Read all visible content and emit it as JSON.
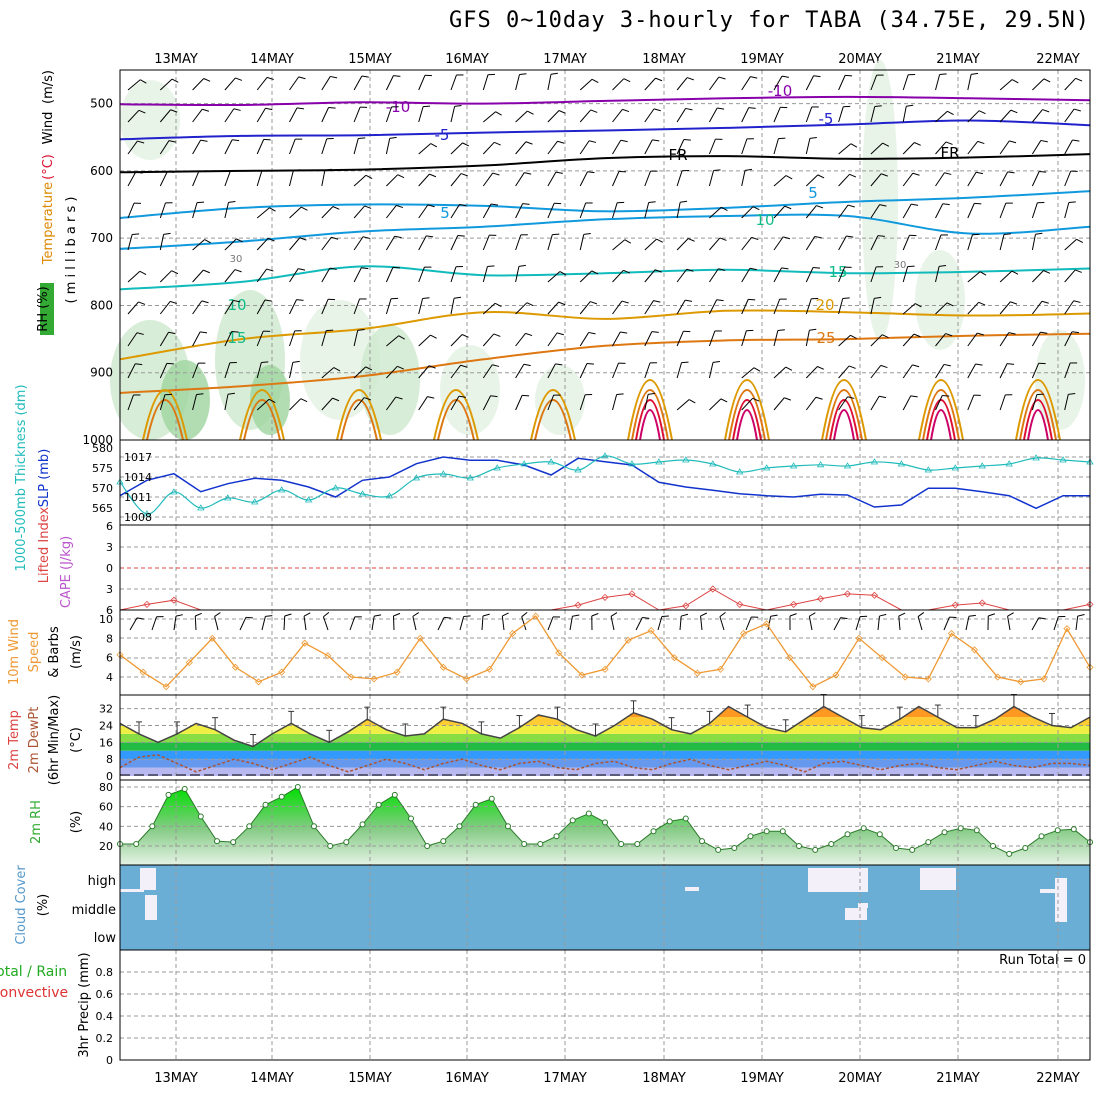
{
  "title": "GFS 0~10day 3-hourly for TABA (34.75E, 29.5N)",
  "date_labels": [
    "13MAY",
    "14MAY",
    "15MAY",
    "16MAY",
    "17MAY",
    "18MAY",
    "19MAY",
    "20MAY",
    "21MAY",
    "22MAY"
  ],
  "colors": {
    "purple": "#8800aa",
    "blue": "#2222cc",
    "black": "#000000",
    "lightblue": "#1199dd",
    "cyan": "#11bbbb",
    "teal": "#11bb88",
    "orange": "#dd9900",
    "darkorange": "#dd7711",
    "red": "#dd1133",
    "slp": "#1133cc",
    "thickness": "#22bbbb",
    "windspd": "#ee9933",
    "cape": "#dd4444",
    "cloud": "#6aaed6",
    "rh2m": "#33aa33"
  },
  "chart_data": [
    {
      "type": "heatmap",
      "panel": "upper-air",
      "ylabel_parts": [
        "RH (%)",
        "Temperature",
        "(°C)",
        "Wind",
        "(m/s)"
      ],
      "ylabel_right": "( m i l l i b a r s )",
      "yticks": [
        500,
        600,
        700,
        800,
        900,
        1000
      ],
      "ylim": [
        450,
        1000
      ],
      "grid": true,
      "temperature_contours": [
        {
          "label": "-10",
          "levels": [
            501,
            502,
            498,
            500,
            496,
            492,
            490,
            492,
            495
          ]
        },
        {
          "label": "-5",
          "levels": [
            553,
            548,
            547,
            543,
            540,
            536,
            531,
            525,
            532
          ]
        },
        {
          "label": "FR",
          "levels": [
            602,
            600,
            598,
            592,
            581,
            578,
            582,
            580,
            575
          ]
        },
        {
          "label": "5",
          "levels": [
            670,
            655,
            650,
            652,
            660,
            655,
            646,
            640,
            630
          ]
        },
        {
          "label": "10",
          "levels": [
            716,
            705,
            690,
            683,
            672,
            667,
            667,
            693,
            683
          ]
        },
        {
          "label": "15",
          "levels": [
            776,
            765,
            742,
            755,
            752,
            747,
            752,
            750,
            745
          ]
        },
        {
          "label": "20",
          "levels": [
            880,
            850,
            835,
            810,
            820,
            808,
            810,
            815,
            812
          ]
        },
        {
          "label": "25",
          "levels": [
            930,
            920,
            905,
            880,
            860,
            852,
            850,
            845,
            842
          ]
        }
      ],
      "contour_labels": [
        "-10",
        "-10",
        "-5",
        "-5",
        "FR",
        "FR",
        "5",
        "5",
        "10",
        "10",
        "15",
        "15",
        "20",
        "25",
        "30",
        "30"
      ]
    },
    {
      "type": "line",
      "panel": "slp-thickness",
      "ylabel_left": "1000-500mb Thickness (dm)",
      "ylabel_right": "SLP (mb)",
      "yticks_left": [
        565,
        570,
        575,
        580
      ],
      "yticks_right": [
        1008,
        1011,
        1014,
        1017
      ],
      "series": [
        {
          "name": "SLP (mb)",
          "values": [
            1011.2,
            1013.5,
            1014.5,
            1011.8,
            1013.0,
            1013.8,
            1013.5,
            1012.5,
            1011.0,
            1013.5,
            1014.0,
            1016.0,
            1017.0,
            1016.5,
            1016.5,
            1015.8,
            1014.3,
            1016.8,
            1016.3,
            1015.8,
            1013.2,
            1012.5,
            1012.0,
            1011.5,
            1011.2,
            1011.0,
            1011.4,
            1011.3,
            1009.5,
            1009.8,
            1012.3,
            1012.3,
            1011.8,
            1011.2,
            1009.3,
            1011.2,
            1011.2
          ]
        },
        {
          "name": "1000-500mb Thickness (dm)",
          "values": [
            571.5,
            563.5,
            569.0,
            565.0,
            567.5,
            566.5,
            569.5,
            567.0,
            570.0,
            568.5,
            568.0,
            572.5,
            573.5,
            572.5,
            575.0,
            576.0,
            576.5,
            574.5,
            578.0,
            576.0,
            576.5,
            577.0,
            576.0,
            574.0,
            575.0,
            575.5,
            575.8,
            575.5,
            576.5,
            576.0,
            574.5,
            575.0,
            575.5,
            576.0,
            577.5,
            577.0,
            576.5
          ]
        }
      ]
    },
    {
      "type": "line",
      "panel": "cape-li",
      "ylabel_parts": [
        "Lifted Index",
        "CAPE (J/kg)"
      ],
      "yticks": [
        -6,
        -3,
        0,
        3,
        6
      ],
      "ylim": [
        -6,
        6
      ],
      "series": [
        {
          "name": "Lifted Index",
          "values": [
            6.0,
            5.2,
            4.6,
            6.0,
            6.0,
            6.0,
            6.0,
            6.0,
            6.0,
            6.0,
            6.0,
            6.0,
            6.0,
            6.0,
            6.0,
            6.0,
            6.0,
            5.3,
            4.2,
            3.7,
            6.0,
            5.4,
            3.0,
            5.2,
            6.0,
            5.2,
            4.4,
            3.7,
            3.9,
            6.0,
            6.0,
            5.3,
            5.0,
            6.0,
            6.0,
            6.0,
            5.2
          ]
        }
      ]
    },
    {
      "type": "line",
      "panel": "wind10m",
      "ylabel_parts": [
        "10m Wind",
        "Speed",
        "(m/s)",
        "& Barbs"
      ],
      "yticks": [
        4,
        6,
        8,
        10
      ],
      "ylim": [
        2,
        11
      ],
      "series": [
        {
          "name": "10m Wind Speed",
          "values": [
            6.3,
            4.5,
            3.0,
            5.5,
            8.0,
            5.0,
            3.5,
            4.5,
            7.5,
            6.2,
            4.0,
            3.8,
            4.5,
            8.0,
            5.0,
            3.8,
            4.8,
            8.5,
            10.3,
            6.5,
            4.2,
            4.8,
            7.8,
            8.8,
            6.0,
            4.4,
            4.8,
            8.5,
            9.5,
            6.0,
            3.0,
            4.2,
            8.0,
            6.0,
            4.0,
            3.8,
            8.5,
            6.8,
            4.0,
            3.5,
            3.8,
            9.0,
            5.0
          ]
        }
      ]
    },
    {
      "type": "area",
      "panel": "temp2m",
      "ylabel_parts": [
        "2m Temp",
        "2m DewPt",
        "(6hr Min/Max)",
        "(°C)"
      ],
      "yticks": [
        0,
        8,
        16,
        24,
        32
      ],
      "ylim": [
        0,
        38
      ],
      "series": [
        {
          "name": "2m Temp",
          "values": [
            25,
            20,
            16,
            20,
            25,
            22,
            17,
            14,
            20,
            25,
            20,
            16,
            21,
            27,
            22,
            19,
            20,
            27,
            25,
            20,
            18,
            23,
            29,
            27,
            22,
            19,
            24,
            30,
            27,
            22,
            20,
            25,
            33,
            28,
            23,
            21,
            27,
            33,
            28,
            23,
            22,
            27,
            33,
            28,
            23,
            23,
            27,
            33,
            28,
            24,
            23,
            28
          ]
        },
        {
          "name": "2m DewPt",
          "values": [
            4,
            9,
            10,
            6,
            2,
            5,
            8,
            6,
            3,
            6,
            9,
            5,
            2,
            5,
            8,
            6,
            3,
            6,
            8,
            5,
            3,
            6,
            7,
            4,
            3,
            6,
            7,
            4,
            3,
            6,
            8,
            5,
            3,
            5,
            7,
            5,
            2,
            6,
            7,
            5,
            3,
            5,
            6,
            4,
            3,
            5,
            7,
            5,
            4,
            6,
            6,
            5
          ]
        }
      ]
    },
    {
      "type": "area",
      "panel": "rh2m",
      "ylabel_parts": [
        "2m RH",
        "(%)"
      ],
      "yticks": [
        20,
        40,
        60,
        80
      ],
      "ylim": [
        10,
        85
      ],
      "series": [
        {
          "name": "2m RH",
          "values": [
            22,
            22,
            40,
            72,
            78,
            50,
            25,
            24,
            40,
            62,
            70,
            80,
            40,
            20,
            24,
            42,
            62,
            72,
            48,
            20,
            25,
            40,
            62,
            68,
            40,
            22,
            22,
            30,
            46,
            53,
            44,
            22,
            22,
            35,
            45,
            48,
            25,
            16,
            18,
            30,
            35,
            35,
            20,
            16,
            22,
            32,
            38,
            32,
            18,
            16,
            24,
            34,
            38,
            36,
            20,
            12,
            18,
            30,
            36,
            37,
            24
          ]
        }
      ]
    },
    {
      "type": "heatmap",
      "panel": "cloud",
      "ylabel_parts": [
        "Cloud Cover",
        "(%)"
      ],
      "row_labels": [
        "high",
        "middle",
        "low"
      ]
    },
    {
      "type": "bar",
      "panel": "precip",
      "ylabel_parts": [
        "Total / Rain",
        "Convective",
        "3hr Precip (mm)"
      ],
      "yticks": [
        0,
        0.2,
        0.4,
        0.6,
        0.8
      ],
      "ylim": [
        0,
        1
      ],
      "annotation": "Run Total = 0",
      "values": []
    }
  ]
}
